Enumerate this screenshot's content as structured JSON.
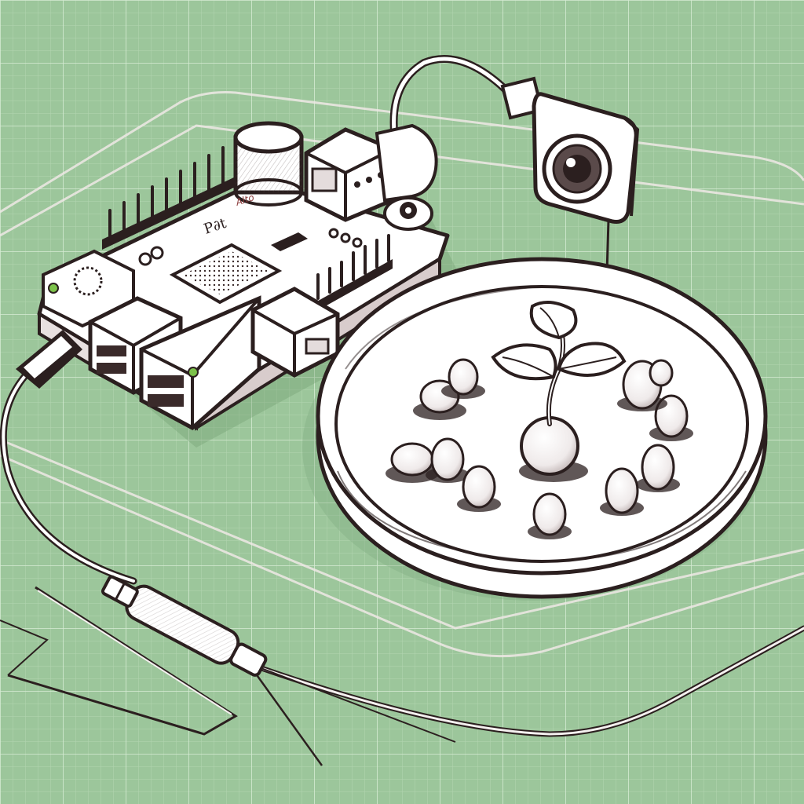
{
  "scene": {
    "description_free": true,
    "board_silkscreen": {
      "logo_text": "P∂t",
      "small_mark_text": "Alto"
    },
    "colors": {
      "background": "#9cc69b",
      "grid_minor": "#b4d6b2",
      "grid_major": "#d9ecd7",
      "ink": "#2b1f1f",
      "paper": "#ffffff",
      "leaf": "#ffffff",
      "led_green": "#7cc24a"
    },
    "icons": [
      "single-board-computer-icon",
      "camera-icon",
      "petri-dish-icon",
      "seedling-icon",
      "probe-sensor-icon"
    ]
  }
}
